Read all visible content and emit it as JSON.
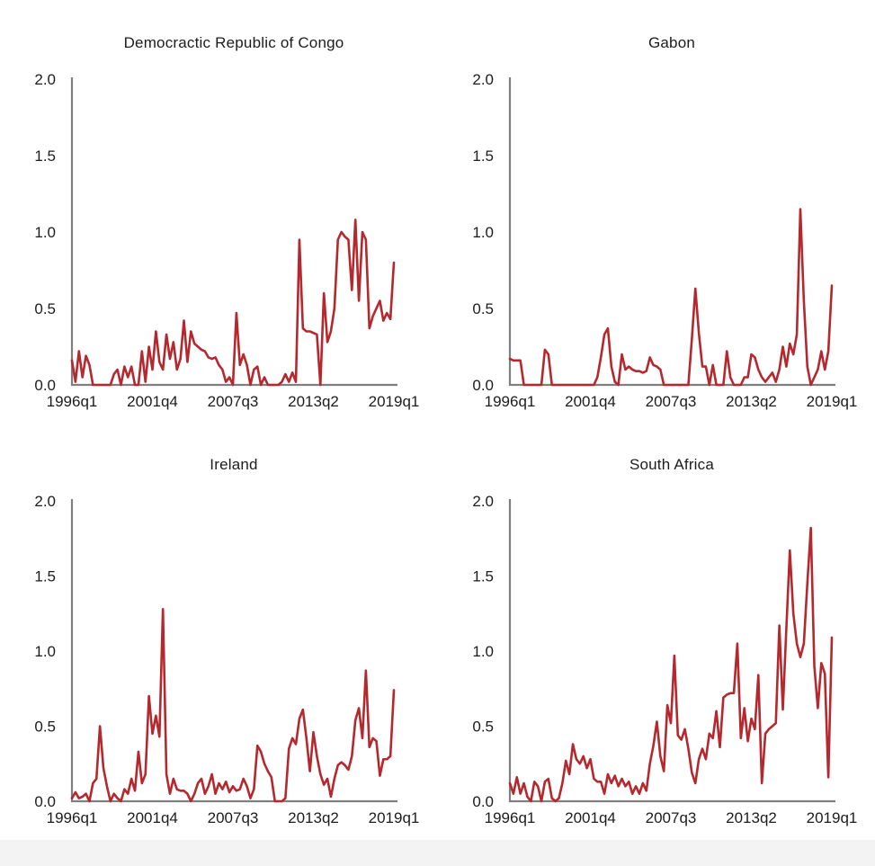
{
  "page": {
    "background_color": "#ffffff",
    "bottom_strip_color": "#f3f3f3"
  },
  "styles": {
    "line_color": "#b4282e",
    "axis_color": "#7f7f7f",
    "tick_text_color": "#1c1c1c",
    "title_text_color": "#1c1c1c"
  },
  "chart_data": [
    {
      "type": "line",
      "title": "Democractic Republic of Congo",
      "x_unit": "quarter",
      "x_start": "1996q1",
      "x_end": "2019q1",
      "x_tick_labels": [
        "1996q1",
        "2001q4",
        "2007q3",
        "2013q2",
        "2019q1"
      ],
      "y_tick_labels": [
        "0.0",
        "0.5",
        "1.0",
        "1.5",
        "2.0"
      ],
      "ylim": [
        0,
        2.0
      ],
      "grid": false,
      "legend": "none",
      "line_color": "#b4282e",
      "values": [
        0.16,
        0.02,
        0.22,
        0.05,
        0.19,
        0.13,
        0.0,
        0.0,
        0.0,
        0.0,
        0.0,
        0.0,
        0.07,
        0.1,
        0.0,
        0.12,
        0.05,
        0.12,
        0.0,
        0.0,
        0.22,
        0.02,
        0.25,
        0.1,
        0.35,
        0.15,
        0.1,
        0.33,
        0.17,
        0.28,
        0.1,
        0.17,
        0.42,
        0.15,
        0.35,
        0.27,
        0.25,
        0.23,
        0.22,
        0.18,
        0.17,
        0.18,
        0.13,
        0.1,
        0.02,
        0.05,
        0.0,
        0.47,
        0.13,
        0.2,
        0.13,
        0.0,
        0.1,
        0.12,
        0.0,
        0.05,
        0.0,
        0.0,
        0.0,
        0.0,
        0.02,
        0.07,
        0.02,
        0.08,
        0.02,
        0.95,
        0.37,
        0.35,
        0.35,
        0.34,
        0.33,
        0.0,
        0.6,
        0.28,
        0.35,
        0.5,
        0.95,
        1.0,
        0.97,
        0.95,
        0.62,
        1.08,
        0.55,
        1.0,
        0.95,
        0.37,
        0.45,
        0.5,
        0.55,
        0.42,
        0.47,
        0.43,
        0.8
      ]
    },
    {
      "type": "line",
      "title": "Gabon",
      "x_unit": "quarter",
      "x_start": "1996q1",
      "x_end": "2019q1",
      "x_tick_labels": [
        "1996q1",
        "2001q4",
        "2007q3",
        "2013q2",
        "2019q1"
      ],
      "y_tick_labels": [
        "0.0",
        "0.5",
        "1.0",
        "1.5",
        "2.0"
      ],
      "ylim": [
        0,
        2.0
      ],
      "grid": false,
      "legend": "none",
      "line_color": "#b4282e",
      "values": [
        0.17,
        0.16,
        0.16,
        0.16,
        0.0,
        0.0,
        0.0,
        0.0,
        0.0,
        0.0,
        0.23,
        0.2,
        0.0,
        0.0,
        0.0,
        0.0,
        0.0,
        0.0,
        0.0,
        0.0,
        0.0,
        0.0,
        0.0,
        0.0,
        0.0,
        0.05,
        0.18,
        0.33,
        0.37,
        0.12,
        0.02,
        0.0,
        0.2,
        0.1,
        0.12,
        0.1,
        0.09,
        0.09,
        0.08,
        0.09,
        0.18,
        0.13,
        0.12,
        0.1,
        0.0,
        0.0,
        0.0,
        0.0,
        0.0,
        0.0,
        0.0,
        0.0,
        0.3,
        0.63,
        0.34,
        0.12,
        0.12,
        0.0,
        0.13,
        0.0,
        0.0,
        0.0,
        0.22,
        0.05,
        0.0,
        0.0,
        0.0,
        0.05,
        0.05,
        0.2,
        0.18,
        0.1,
        0.05,
        0.02,
        0.05,
        0.08,
        0.02,
        0.1,
        0.25,
        0.12,
        0.27,
        0.2,
        0.33,
        1.15,
        0.55,
        0.12,
        0.0,
        0.05,
        0.1,
        0.22,
        0.1,
        0.22,
        0.65
      ]
    },
    {
      "type": "line",
      "title": "Ireland",
      "x_unit": "quarter",
      "x_start": "1996q1",
      "x_end": "2019q1",
      "x_tick_labels": [
        "1996q1",
        "2001q4",
        "2007q3",
        "2013q2",
        "2019q1"
      ],
      "y_tick_labels": [
        "0.0",
        "0.5",
        "1.0",
        "1.5",
        "2.0"
      ],
      "ylim": [
        0,
        2.0
      ],
      "grid": false,
      "legend": "none",
      "line_color": "#b4282e",
      "values": [
        0.02,
        0.06,
        0.02,
        0.03,
        0.05,
        0.0,
        0.12,
        0.15,
        0.5,
        0.22,
        0.1,
        0.0,
        0.05,
        0.02,
        0.0,
        0.08,
        0.05,
        0.15,
        0.07,
        0.33,
        0.12,
        0.18,
        0.7,
        0.45,
        0.57,
        0.43,
        1.28,
        0.18,
        0.05,
        0.15,
        0.08,
        0.07,
        0.07,
        0.05,
        0.0,
        0.05,
        0.12,
        0.15,
        0.05,
        0.1,
        0.18,
        0.05,
        0.12,
        0.08,
        0.13,
        0.06,
        0.1,
        0.07,
        0.08,
        0.15,
        0.1,
        0.02,
        0.08,
        0.37,
        0.33,
        0.25,
        0.2,
        0.16,
        0.0,
        0.0,
        0.0,
        0.02,
        0.35,
        0.42,
        0.38,
        0.55,
        0.61,
        0.42,
        0.2,
        0.46,
        0.3,
        0.18,
        0.11,
        0.15,
        0.03,
        0.15,
        0.24,
        0.26,
        0.24,
        0.21,
        0.3,
        0.54,
        0.62,
        0.42,
        0.87,
        0.36,
        0.42,
        0.4,
        0.17,
        0.28,
        0.28,
        0.3,
        0.74
      ]
    },
    {
      "type": "line",
      "title": "South Africa",
      "x_unit": "quarter",
      "x_start": "1996q1",
      "x_end": "2019q1",
      "x_tick_labels": [
        "1996q1",
        "2001q4",
        "2007q3",
        "2013q2",
        "2019q1"
      ],
      "y_tick_labels": [
        "0.0",
        "0.5",
        "1.0",
        "1.5",
        "2.0"
      ],
      "ylim": [
        0,
        2.0
      ],
      "grid": false,
      "legend": "none",
      "line_color": "#b4282e",
      "values": [
        0.12,
        0.05,
        0.16,
        0.05,
        0.12,
        0.03,
        0.0,
        0.13,
        0.1,
        0.0,
        0.13,
        0.15,
        0.02,
        0.0,
        0.02,
        0.12,
        0.27,
        0.18,
        0.38,
        0.28,
        0.25,
        0.3,
        0.22,
        0.28,
        0.15,
        0.13,
        0.13,
        0.05,
        0.18,
        0.12,
        0.17,
        0.1,
        0.15,
        0.1,
        0.13,
        0.05,
        0.1,
        0.05,
        0.12,
        0.07,
        0.25,
        0.37,
        0.53,
        0.3,
        0.2,
        0.64,
        0.52,
        0.97,
        0.44,
        0.41,
        0.48,
        0.35,
        0.19,
        0.12,
        0.28,
        0.35,
        0.28,
        0.45,
        0.42,
        0.6,
        0.36,
        0.69,
        0.71,
        0.72,
        0.72,
        1.05,
        0.42,
        0.62,
        0.4,
        0.55,
        0.48,
        0.84,
        0.12,
        0.45,
        0.48,
        0.5,
        0.52,
        1.17,
        0.61,
        1.15,
        1.67,
        1.25,
        1.05,
        0.96,
        1.05,
        1.45,
        1.82,
        0.9,
        0.62,
        0.92,
        0.85,
        0.16,
        1.09
      ]
    }
  ]
}
